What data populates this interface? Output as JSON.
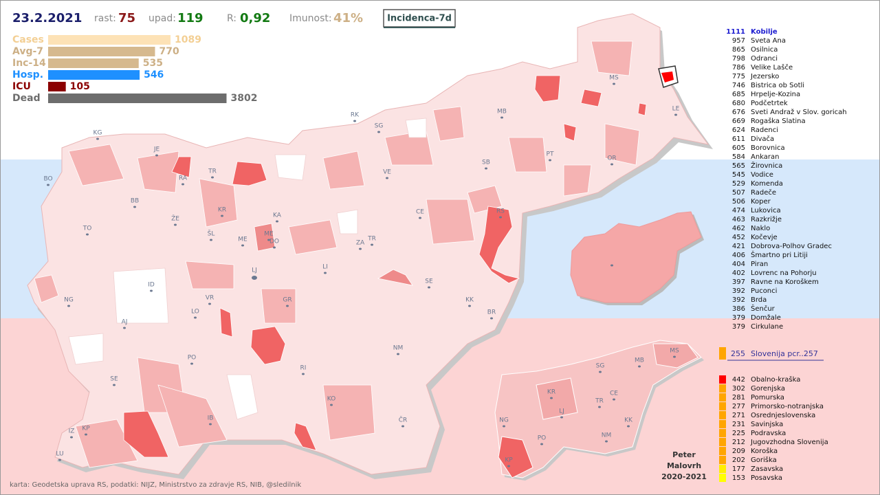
{
  "header": {
    "date": "23.2.2021",
    "growth_label": "rast:",
    "growth": 75,
    "decline_label": "upad:",
    "decline": 119,
    "r_label": "R:",
    "r": "0,92",
    "immunity_label": "Imunost:",
    "immunity": "41%",
    "mode_button": "Incidenca-7d"
  },
  "stats": {
    "scale": "log",
    "rows": [
      {
        "label": "Cases",
        "value": 1089,
        "color": "#fde2b6",
        "text_color": "#f3cf94"
      },
      {
        "label": "Avg-7",
        "value": 770,
        "color": "#d6b98e",
        "text_color": "#cdb086"
      },
      {
        "label": "Inc-14",
        "value": 535,
        "color": "#d6b98e",
        "text_color": "#cdb086"
      },
      {
        "label": "Hosp.",
        "value": 546,
        "color": "#1e90ff",
        "text_color": "#1e90ff"
      },
      {
        "label": "ICU",
        "value": 105,
        "color": "#8b0000",
        "text_color": "#8b0000"
      },
      {
        "label": "Dead",
        "value": 3802,
        "color": "#6d6d6d",
        "text_color": "#6d6d6d"
      }
    ]
  },
  "ranking": [
    {
      "value": 1111,
      "name": "Kobilje"
    },
    {
      "value": 957,
      "name": "Sveta Ana"
    },
    {
      "value": 865,
      "name": "Osilnica"
    },
    {
      "value": 798,
      "name": "Odranci"
    },
    {
      "value": 786,
      "name": "Velike Lašče"
    },
    {
      "value": 775,
      "name": "Jezersko"
    },
    {
      "value": 746,
      "name": "Bistrica ob Sotli"
    },
    {
      "value": 685,
      "name": "Hrpelje-Kozina"
    },
    {
      "value": 680,
      "name": "Podčetrtek"
    },
    {
      "value": 676,
      "name": "Sveti Andraž v Slov. goricah"
    },
    {
      "value": 669,
      "name": "Rogaška Slatina"
    },
    {
      "value": 624,
      "name": "Radenci"
    },
    {
      "value": 611,
      "name": "Divača"
    },
    {
      "value": 605,
      "name": "Borovnica"
    },
    {
      "value": 584,
      "name": "Ankaran"
    },
    {
      "value": 565,
      "name": "Žirovnica"
    },
    {
      "value": 545,
      "name": "Vodice"
    },
    {
      "value": 529,
      "name": "Komenda"
    },
    {
      "value": 507,
      "name": "Radeče"
    },
    {
      "value": 506,
      "name": "Koper"
    },
    {
      "value": 474,
      "name": "Lukovica"
    },
    {
      "value": 463,
      "name": "Razkrižje"
    },
    {
      "value": 462,
      "name": "Naklo"
    },
    {
      "value": 452,
      "name": "Kočevje"
    },
    {
      "value": 421,
      "name": "Dobrova-Polhov Gradec"
    },
    {
      "value": 406,
      "name": "Šmartno pri Litiji"
    },
    {
      "value": 404,
      "name": "Piran"
    },
    {
      "value": 402,
      "name": "Lovrenc na Pohorju"
    },
    {
      "value": 397,
      "name": "Ravne na Koroškem"
    },
    {
      "value": 392,
      "name": "Puconci"
    },
    {
      "value": 392,
      "name": "Brda"
    },
    {
      "value": 386,
      "name": "Šenčur"
    },
    {
      "value": 379,
      "name": "Domžale"
    },
    {
      "value": 379,
      "name": "Cirkulane"
    }
  ],
  "national": {
    "value": 255,
    "label": "Slovenija  pcr..257",
    "color": "#ffa500"
  },
  "regions": [
    {
      "value": 442,
      "name": "Obalno-kraška",
      "color": "#ff0000"
    },
    {
      "value": 302,
      "name": "Gorenjska",
      "color": "#ffa500"
    },
    {
      "value": 281,
      "name": "Pomurska",
      "color": "#ffa500"
    },
    {
      "value": 277,
      "name": "Primorsko-notranjska",
      "color": "#ffa500"
    },
    {
      "value": 271,
      "name": "Osrednjeslovenska",
      "color": "#ffa500"
    },
    {
      "value": 231,
      "name": "Savinjska",
      "color": "#ffa500"
    },
    {
      "value": 225,
      "name": "Podravska",
      "color": "#ffa500"
    },
    {
      "value": 212,
      "name": "Jugovzhodna Slovenija",
      "color": "#ffa500"
    },
    {
      "value": 209,
      "name": "Koroška",
      "color": "#ffa500"
    },
    {
      "value": 202,
      "name": "Goriška",
      "color": "#ffa500"
    },
    {
      "value": 177,
      "name": "Zasavska",
      "color": "#ffee00"
    },
    {
      "value": 153,
      "name": "Posavska",
      "color": "#ffff00"
    }
  ],
  "map_labels": [
    "KG",
    "JE",
    "BO",
    "RA",
    "TR",
    "RK",
    "SG",
    "MB",
    "MS",
    "LE",
    "PT",
    "OR",
    "SB",
    "VE",
    "BB",
    "ŽE",
    "KR",
    "KA",
    "TO",
    "ŠL",
    "ME",
    "ME",
    "DO",
    "CE",
    "RS",
    "ZA",
    "TR",
    "LJ",
    "LI",
    "ID",
    "VR",
    "GR",
    "SE",
    "NG",
    "KK",
    "BR",
    "AJ",
    "LO",
    "NM",
    "PO",
    "RI",
    "SE",
    "KO",
    "IB",
    "IZ",
    "KP",
    "LU",
    "ČR"
  ],
  "region_map_labels": [
    "MS",
    "SG",
    "MB",
    "KR",
    "CE",
    "TR",
    "LJ",
    "NG",
    "KK",
    "NM",
    "PO",
    "KP"
  ],
  "credit": "karta: Geodetska uprava RS,  podatki: NIJZ, Ministrstvo za zdravje RS, NIB, @sledilnik",
  "author": [
    "Peter",
    "Malovrh",
    "2020-2021"
  ]
}
